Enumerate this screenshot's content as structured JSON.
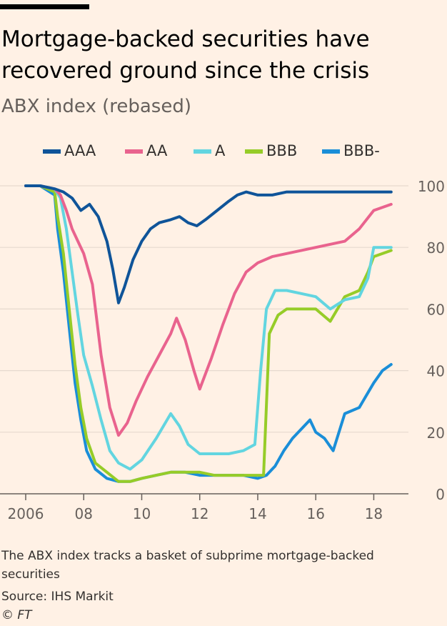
{
  "title": "Mortgage-backed securities have recovered ground since the crisis",
  "subtitle": "ABX index (rebased)",
  "footnote": "The ABX index tracks a basket of subprime mortgage-backed securities",
  "source": "Source: IHS Markit",
  "copyright": "© FT",
  "chart_data": {
    "type": "line",
    "title": "Mortgage-backed securities have recovered ground since the crisis",
    "subtitle": "ABX index (rebased)",
    "xlabel": "",
    "ylabel": "",
    "xlim": [
      2006.0,
      2018.9
    ],
    "ylim": [
      0,
      100
    ],
    "x_ticks": [
      2006,
      2008,
      2010,
      2012,
      2014,
      2016,
      2018
    ],
    "x_tick_labels": [
      "2006",
      "08",
      "10",
      "12",
      "14",
      "16",
      "18"
    ],
    "y_ticks": [
      0,
      20,
      40,
      60,
      80,
      100
    ],
    "y_tick_labels": [
      "0",
      "20",
      "40",
      "60",
      "80",
      "100"
    ],
    "y_axis_position": "right",
    "grid": true,
    "legend_position": "top",
    "series": [
      {
        "name": "AAA",
        "color": "#0f5499",
        "x": [
          2006.0,
          2006.5,
          2007.0,
          2007.3,
          2007.6,
          2007.9,
          2008.2,
          2008.5,
          2008.8,
          2009.0,
          2009.2,
          2009.4,
          2009.7,
          2010.0,
          2010.3,
          2010.6,
          2011.0,
          2011.3,
          2011.6,
          2011.9,
          2012.2,
          2012.6,
          2013.0,
          2013.3,
          2013.6,
          2014.0,
          2014.5,
          2015.0,
          2016.0,
          2017.0,
          2018.0,
          2018.6
        ],
        "y": [
          100,
          100,
          99,
          98,
          96,
          92,
          94,
          90,
          82,
          73,
          62,
          67,
          76,
          82,
          86,
          88,
          89,
          90,
          88,
          87,
          89,
          92,
          95,
          97,
          98,
          97,
          97,
          98,
          98,
          98,
          98,
          98
        ]
      },
      {
        "name": "AA",
        "color": "#e9638e",
        "x": [
          2006.0,
          2006.5,
          2007.0,
          2007.2,
          2007.4,
          2007.6,
          2007.8,
          2008.0,
          2008.3,
          2008.6,
          2008.9,
          2009.2,
          2009.5,
          2009.8,
          2010.2,
          2010.6,
          2011.0,
          2011.2,
          2011.5,
          2011.8,
          2012.0,
          2012.4,
          2012.8,
          2013.2,
          2013.6,
          2014.0,
          2014.5,
          2015.0,
          2016.0,
          2017.0,
          2017.5,
          2018.0,
          2018.6
        ],
        "y": [
          100,
          100,
          99,
          97,
          92,
          86,
          82,
          78,
          68,
          45,
          28,
          19,
          23,
          30,
          38,
          45,
          52,
          57,
          50,
          40,
          34,
          44,
          55,
          65,
          72,
          75,
          77,
          78,
          80,
          82,
          86,
          92,
          94
        ]
      },
      {
        "name": "A",
        "color": "#62d5e0",
        "x": [
          2006.0,
          2006.5,
          2007.0,
          2007.2,
          2007.4,
          2007.6,
          2007.8,
          2008.0,
          2008.3,
          2008.6,
          2008.9,
          2009.2,
          2009.6,
          2010.0,
          2010.5,
          2011.0,
          2011.3,
          2011.6,
          2012.0,
          2012.5,
          2013.0,
          2013.5,
          2013.9,
          2014.1,
          2014.3,
          2014.6,
          2015.0,
          2015.5,
          2016.0,
          2016.5,
          2017.0,
          2017.5,
          2017.8,
          2018.0,
          2018.6
        ],
        "y": [
          100,
          100,
          99,
          96,
          86,
          72,
          58,
          45,
          35,
          24,
          14,
          10,
          8,
          11,
          18,
          26,
          22,
          16,
          13,
          13,
          13,
          14,
          16,
          40,
          60,
          66,
          66,
          65,
          64,
          60,
          63,
          64,
          70,
          80,
          80
        ]
      },
      {
        "name": "BBB",
        "color": "#96cc28",
        "x": [
          2006.0,
          2006.5,
          2007.0,
          2007.1,
          2007.3,
          2007.5,
          2007.7,
          2007.9,
          2008.1,
          2008.4,
          2008.8,
          2009.2,
          2009.6,
          2010.0,
          2010.5,
          2011.0,
          2011.5,
          2012.0,
          2012.5,
          2013.0,
          2013.5,
          2014.0,
          2014.2,
          2014.4,
          2014.7,
          2015.0,
          2015.5,
          2016.0,
          2016.5,
          2017.0,
          2017.5,
          2017.8,
          2018.0,
          2018.6
        ],
        "y": [
          100,
          100,
          98,
          90,
          78,
          60,
          42,
          28,
          18,
          10,
          7,
          4,
          4,
          5,
          6,
          7,
          7,
          7,
          6,
          6,
          6,
          6,
          6,
          52,
          58,
          60,
          60,
          60,
          56,
          64,
          66,
          72,
          77,
          79
        ]
      },
      {
        "name": "BBB-",
        "color": "#1a8ed8",
        "x": [
          2006.0,
          2006.5,
          2007.0,
          2007.1,
          2007.3,
          2007.5,
          2007.7,
          2007.9,
          2008.1,
          2008.4,
          2008.8,
          2009.2,
          2009.6,
          2010.0,
          2010.5,
          2011.0,
          2011.5,
          2012.0,
          2012.5,
          2013.0,
          2013.5,
          2014.0,
          2014.3,
          2014.6,
          2014.9,
          2015.2,
          2015.5,
          2015.8,
          2016.0,
          2016.3,
          2016.6,
          2017.0,
          2017.5,
          2018.0,
          2018.3,
          2018.6
        ],
        "y": [
          100,
          100,
          97,
          86,
          72,
          54,
          36,
          24,
          14,
          8,
          5,
          4,
          4,
          5,
          6,
          7,
          7,
          6,
          6,
          6,
          6,
          5,
          6,
          9,
          14,
          18,
          21,
          24,
          20,
          18,
          14,
          26,
          28,
          36,
          40,
          42
        ]
      }
    ]
  }
}
